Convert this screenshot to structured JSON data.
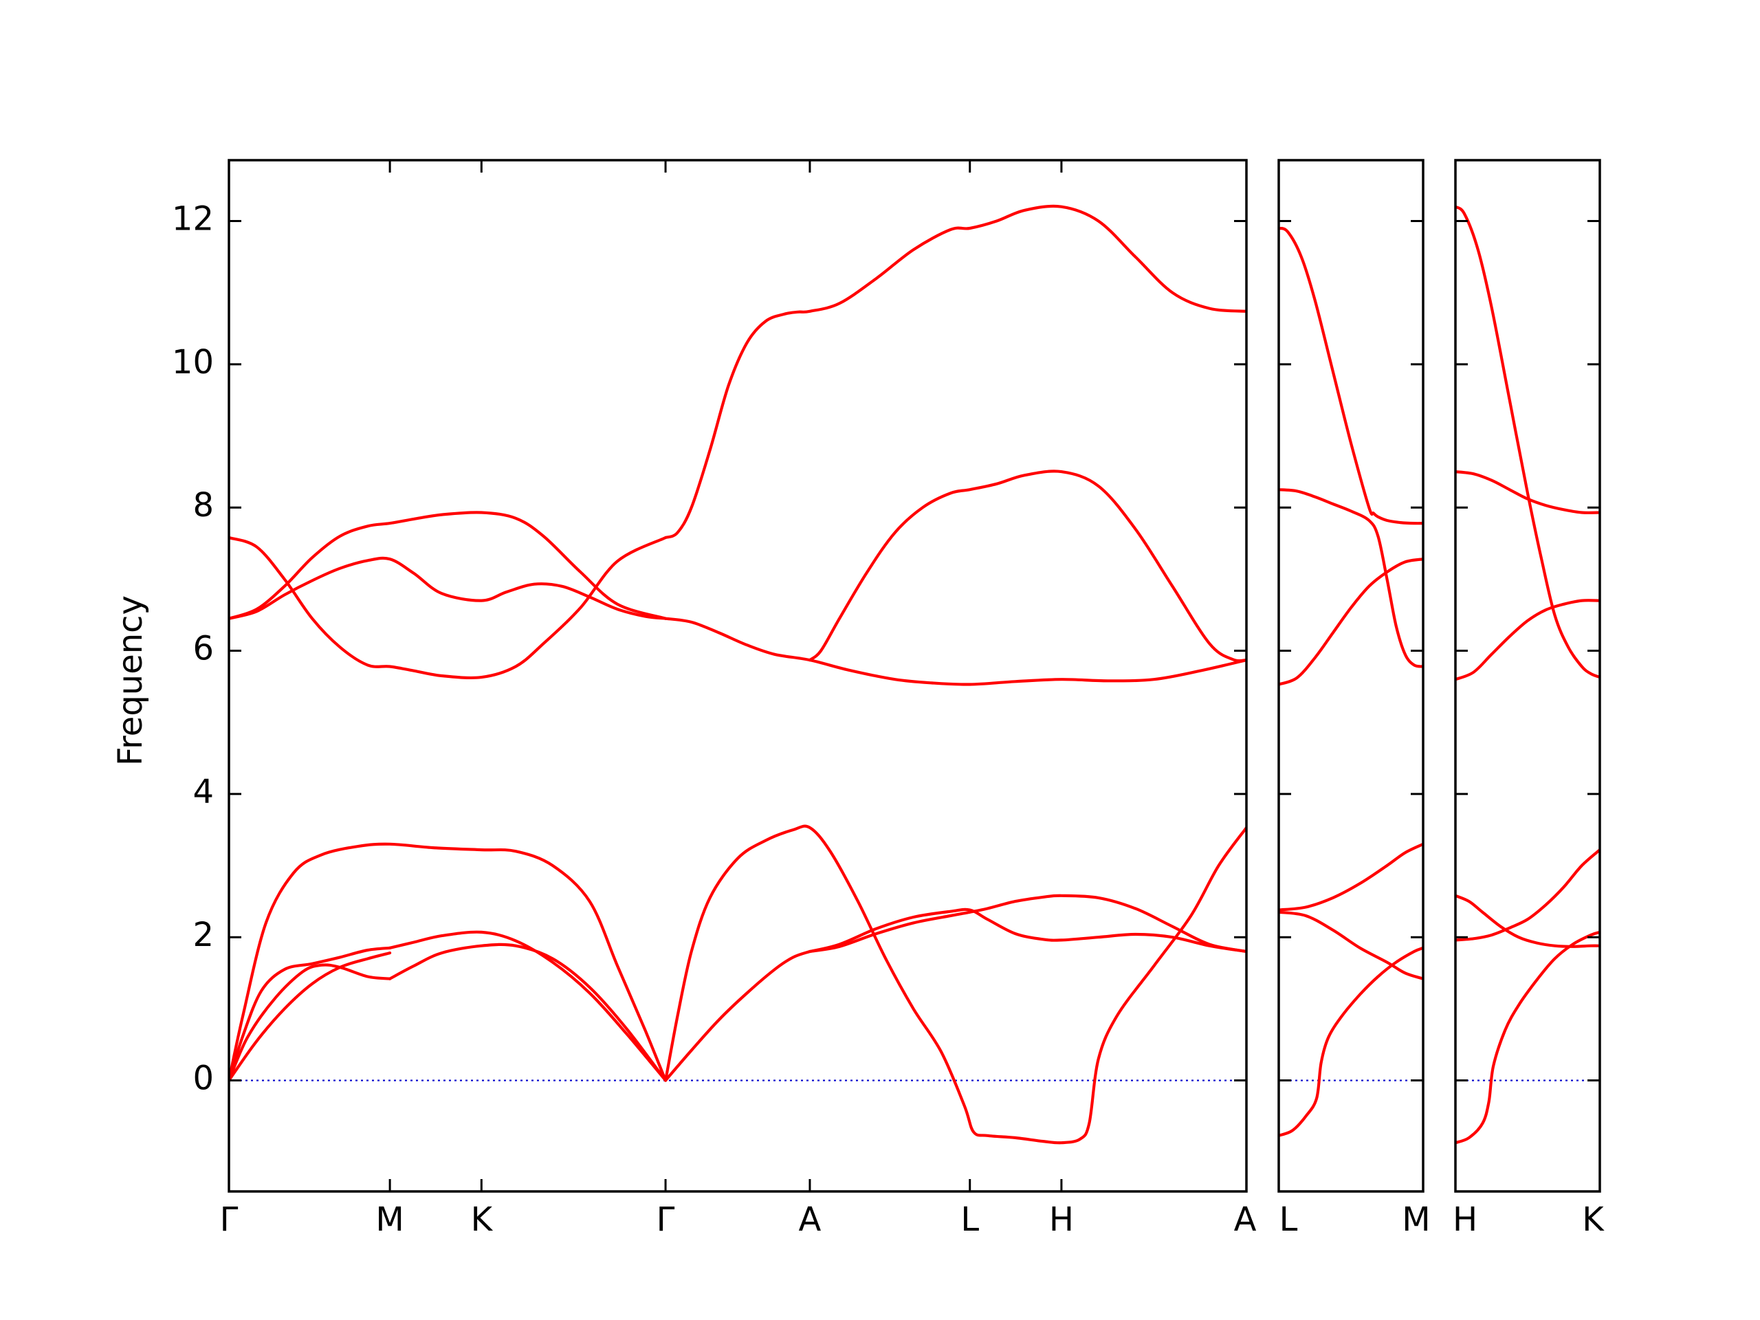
{
  "chart_data": {
    "type": "line",
    "ylabel": "Frequency",
    "ylim": [
      -1.55,
      12.85
    ],
    "yticks": [
      0,
      2,
      4,
      6,
      8,
      10,
      12
    ],
    "colors": {
      "bands": "#ff0000",
      "zero_line": "#0000cc",
      "axes": "#000000"
    },
    "zero_line": {
      "y": 0,
      "style": "dotted"
    },
    "panels": [
      {
        "xlim": [
          0,
          11
        ],
        "ticks": [
          {
            "x": 0,
            "label": "Γ"
          },
          {
            "x": 1.74,
            "label": "M"
          },
          {
            "x": 2.73,
            "label": "K"
          },
          {
            "x": 4.72,
            "label": "Γ"
          },
          {
            "x": 6.28,
            "label": "A"
          },
          {
            "x": 8.01,
            "label": "L"
          },
          {
            "x": 9.0,
            "label": "H"
          },
          {
            "x": 11.0,
            "label": "A"
          }
        ],
        "series": [
          {
            "x": [
              0,
              0.15,
              0.35,
              0.6,
              0.9,
              1.2,
              1.5,
              1.74
            ],
            "y": [
              0,
              0.62,
              1.25,
              1.55,
              1.63,
              1.72,
              1.82,
              1.85
            ]
          },
          {
            "x": [
              1.74,
              2.0,
              2.3,
              2.73,
              3.1,
              3.5,
              3.9,
              4.3,
              4.72
            ],
            "y": [
              1.85,
              1.93,
              2.02,
              2.07,
              1.95,
              1.65,
              1.22,
              0.65,
              0
            ]
          },
          {
            "x": [
              0,
              0.3,
              0.6,
              0.9,
              1.2,
              1.5,
              1.74
            ],
            "y": [
              0,
              0.55,
              1.0,
              1.35,
              1.58,
              1.7,
              1.78
            ]
          },
          {
            "x": [
              0,
              0.2,
              0.5,
              0.8,
              1.0,
              1.2,
              1.5,
              1.74
            ],
            "y": [
              0,
              0.6,
              1.15,
              1.52,
              1.61,
              1.58,
              1.45,
              1.42
            ]
          },
          {
            "x": [
              1.74,
              2.0,
              2.3,
              2.73,
              3.1,
              3.5,
              3.9,
              4.3,
              4.72
            ],
            "y": [
              1.42,
              1.6,
              1.78,
              1.88,
              1.88,
              1.7,
              1.3,
              0.72,
              0
            ]
          },
          {
            "x": [
              0,
              0.15,
              0.4,
              0.7,
              1.0,
              1.4,
              1.74,
              2.2,
              2.73,
              3.1,
              3.5,
              3.9,
              4.2,
              4.5,
              4.72
            ],
            "y": [
              0,
              0.9,
              2.2,
              2.9,
              3.15,
              3.27,
              3.3,
              3.25,
              3.22,
              3.2,
              3.0,
              2.5,
              1.6,
              0.7,
              0
            ]
          },
          {
            "x": [
              0,
              0.3,
              0.6,
              0.9,
              1.2,
              1.5,
              1.74,
              2.0,
              2.3,
              2.73,
              3.1,
              3.4,
              3.8,
              4.2,
              4.72
            ],
            "y": [
              7.58,
              7.45,
              7.0,
              6.45,
              6.05,
              5.8,
              5.78,
              5.72,
              5.65,
              5.63,
              5.78,
              6.1,
              6.6,
              7.25,
              7.58
            ]
          },
          {
            "x": [
              0,
              0.3,
              0.6,
              0.9,
              1.2,
              1.5,
              1.74,
              2.0,
              2.3,
              2.73,
              3.1,
              3.4,
              3.8,
              4.2,
              4.72
            ],
            "y": [
              6.45,
              6.58,
              6.9,
              7.3,
              7.6,
              7.74,
              7.78,
              7.84,
              7.9,
              7.93,
              7.85,
              7.6,
              7.1,
              6.65,
              6.45
            ]
          },
          {
            "x": [
              0,
              0.3,
              0.6,
              0.9,
              1.2,
              1.5,
              1.74,
              2.0,
              2.3,
              2.73,
              3.0,
              3.3,
              3.6,
              3.9,
              4.2,
              4.5,
              4.72
            ],
            "y": [
              6.45,
              6.55,
              6.78,
              6.98,
              7.15,
              7.26,
              7.28,
              7.08,
              6.8,
              6.7,
              6.82,
              6.93,
              6.9,
              6.75,
              6.58,
              6.48,
              6.45
            ]
          },
          {
            "x": [
              4.72,
              5.0,
              5.3,
              5.6,
              5.9,
              6.1,
              6.28
            ],
            "y": [
              0,
              0.42,
              0.85,
              1.22,
              1.55,
              1.72,
              1.8
            ]
          },
          {
            "x": [
              4.72,
              4.85,
              5.0,
              5.2,
              5.5,
              5.8,
              6.1,
              6.28,
              6.5,
              6.8,
              7.1,
              7.4,
              7.7,
              7.95,
              8.05,
              8.2,
              8.5,
              8.8,
              9.0,
              9.2,
              9.3,
              9.4,
              9.6,
              10.0,
              10.4,
              10.7,
              11.0
            ],
            "y": [
              0,
              0.9,
              1.8,
              2.55,
              3.1,
              3.35,
              3.5,
              3.53,
              3.2,
              2.5,
              1.7,
              1.0,
              0.4,
              -0.35,
              -0.72,
              -0.77,
              -0.8,
              -0.85,
              -0.87,
              -0.82,
              -0.6,
              0.3,
              0.9,
              1.6,
              2.3,
              3.0,
              3.53
            ]
          },
          {
            "x": [
              6.28,
              6.6,
              7.0,
              7.4,
              7.8,
              8.01,
              8.2,
              8.5,
              8.8,
              9.0,
              9.4,
              9.8,
              10.2,
              10.6,
              11.0
            ],
            "y": [
              1.8,
              1.87,
              2.05,
              2.2,
              2.3,
              2.35,
              2.4,
              2.5,
              2.56,
              2.58,
              2.55,
              2.4,
              2.15,
              1.9,
              1.8
            ]
          },
          {
            "x": [
              6.28,
              6.6,
              7.0,
              7.4,
              7.8,
              8.01,
              8.2,
              8.5,
              8.8,
              9.0,
              9.4,
              9.8,
              10.2,
              10.6,
              11.0
            ],
            "y": [
              1.8,
              1.9,
              2.12,
              2.28,
              2.36,
              2.38,
              2.25,
              2.05,
              1.97,
              1.96,
              2.0,
              2.04,
              2.0,
              1.88,
              1.8
            ]
          },
          {
            "x": [
              4.72,
              5.0,
              5.3,
              5.6,
              5.9,
              6.28,
              6.7,
              7.2,
              7.6,
              8.01,
              8.5,
              9.0,
              9.5,
              10.0,
              10.5,
              11.0
            ],
            "y": [
              6.45,
              6.4,
              6.25,
              6.08,
              5.95,
              5.87,
              5.73,
              5.6,
              5.55,
              5.53,
              5.57,
              5.6,
              5.58,
              5.6,
              5.72,
              5.87
            ]
          },
          {
            "x": [
              6.28,
              6.4,
              6.6,
              6.9,
              7.2,
              7.5,
              7.8,
              8.01,
              8.3,
              8.6,
              9.0,
              9.4,
              9.8,
              10.2,
              10.6,
              10.85,
              11.0
            ],
            "y": [
              5.87,
              6.0,
              6.45,
              7.1,
              7.65,
              8.0,
              8.2,
              8.25,
              8.33,
              8.45,
              8.5,
              8.3,
              7.7,
              6.9,
              6.1,
              5.88,
              5.87
            ]
          },
          {
            "x": [
              4.72,
              4.85,
              5.0,
              5.2,
              5.4,
              5.6,
              5.8,
              6.0,
              6.15,
              6.28,
              6.6,
              7.0,
              7.4,
              7.8,
              8.01,
              8.3,
              8.6,
              9.0,
              9.4,
              9.8,
              10.2,
              10.6,
              11.0
            ],
            "y": [
              7.58,
              7.65,
              8.0,
              8.8,
              9.7,
              10.3,
              10.6,
              10.7,
              10.73,
              10.74,
              10.85,
              11.2,
              11.6,
              11.88,
              11.9,
              12.0,
              12.15,
              12.2,
              12.0,
              11.5,
              11.0,
              10.78,
              10.74
            ]
          }
        ]
      },
      {
        "xlim": [
          0,
          1.6
        ],
        "ticks": [
          {
            "x": 0,
            "label": "L"
          },
          {
            "x": 1.6,
            "label": "M"
          }
        ],
        "series": [
          {
            "x": [
              0,
              0.15,
              0.3,
              0.42,
              0.47,
              0.55,
              0.7,
              0.9,
              1.1,
              1.3,
              1.5,
              1.6
            ],
            "y": [
              -0.77,
              -0.7,
              -0.5,
              -0.25,
              0.25,
              0.6,
              0.9,
              1.2,
              1.45,
              1.65,
              1.8,
              1.85
            ]
          },
          {
            "x": [
              0,
              0.3,
              0.6,
              0.9,
              1.2,
              1.4,
              1.6
            ],
            "y": [
              2.35,
              2.3,
              2.1,
              1.85,
              1.65,
              1.5,
              1.42
            ]
          },
          {
            "x": [
              0,
              0.3,
              0.6,
              0.9,
              1.2,
              1.4,
              1.6
            ],
            "y": [
              2.38,
              2.42,
              2.55,
              2.75,
              3.0,
              3.18,
              3.3
            ]
          },
          {
            "x": [
              0,
              0.2,
              0.4,
              0.6,
              0.8,
              1.0,
              1.2,
              1.4,
              1.6
            ],
            "y": [
              5.53,
              5.62,
              5.9,
              6.25,
              6.6,
              6.9,
              7.1,
              7.24,
              7.28
            ]
          },
          {
            "x": [
              0,
              0.2,
              0.4,
              0.6,
              0.8,
              1.0,
              1.1,
              1.2,
              1.3,
              1.4,
              1.5,
              1.6
            ],
            "y": [
              8.25,
              8.23,
              8.15,
              8.05,
              7.95,
              7.82,
              7.6,
              7.0,
              6.35,
              5.95,
              5.8,
              5.78
            ]
          },
          {
            "x": [
              0,
              0.1,
              0.25,
              0.4,
              0.6,
              0.8,
              1.0,
              1.05,
              1.1,
              1.2,
              1.35,
              1.5,
              1.6
            ],
            "y": [
              11.9,
              11.85,
              11.5,
              10.9,
              9.9,
              8.9,
              8.0,
              7.92,
              7.87,
              7.82,
              7.79,
              7.78,
              7.78
            ]
          }
        ]
      },
      {
        "xlim": [
          0,
          1.6
        ],
        "ticks": [
          {
            "x": 0,
            "label": "H"
          },
          {
            "x": 1.6,
            "label": "K"
          }
        ],
        "series": [
          {
            "x": [
              0,
              0.15,
              0.3,
              0.37,
              0.42,
              0.55,
              0.7,
              0.9,
              1.1,
              1.3,
              1.5,
              1.6
            ],
            "y": [
              -0.87,
              -0.8,
              -0.6,
              -0.3,
              0.2,
              0.7,
              1.05,
              1.4,
              1.7,
              1.9,
              2.03,
              2.07
            ]
          },
          {
            "x": [
              0,
              0.2,
              0.4,
              0.6,
              0.8,
              1.0,
              1.2,
              1.4,
              1.6
            ],
            "y": [
              1.96,
              1.98,
              2.03,
              2.13,
              2.25,
              2.45,
              2.7,
              3.0,
              3.22
            ]
          },
          {
            "x": [
              0,
              0.15,
              0.3,
              0.5,
              0.7,
              0.9,
              1.1,
              1.3,
              1.5,
              1.6
            ],
            "y": [
              2.58,
              2.5,
              2.35,
              2.15,
              2.0,
              1.92,
              1.88,
              1.87,
              1.88,
              1.88
            ]
          },
          {
            "x": [
              0,
              0.2,
              0.4,
              0.6,
              0.8,
              1.0,
              1.2,
              1.4,
              1.6
            ],
            "y": [
              5.6,
              5.7,
              5.95,
              6.2,
              6.42,
              6.57,
              6.65,
              6.7,
              6.7
            ]
          },
          {
            "x": [
              0,
              0.2,
              0.4,
              0.6,
              0.8,
              1.0,
              1.2,
              1.4,
              1.6
            ],
            "y": [
              8.5,
              8.47,
              8.38,
              8.25,
              8.12,
              8.03,
              7.97,
              7.93,
              7.93
            ]
          },
          {
            "x": [
              0,
              0.1,
              0.25,
              0.4,
              0.6,
              0.8,
              0.95,
              1.1,
              1.25,
              1.4,
              1.5,
              1.6
            ],
            "y": [
              12.2,
              12.1,
              11.6,
              10.8,
              9.5,
              8.2,
              7.3,
              6.5,
              6.05,
              5.78,
              5.68,
              5.63
            ]
          }
        ]
      }
    ]
  }
}
